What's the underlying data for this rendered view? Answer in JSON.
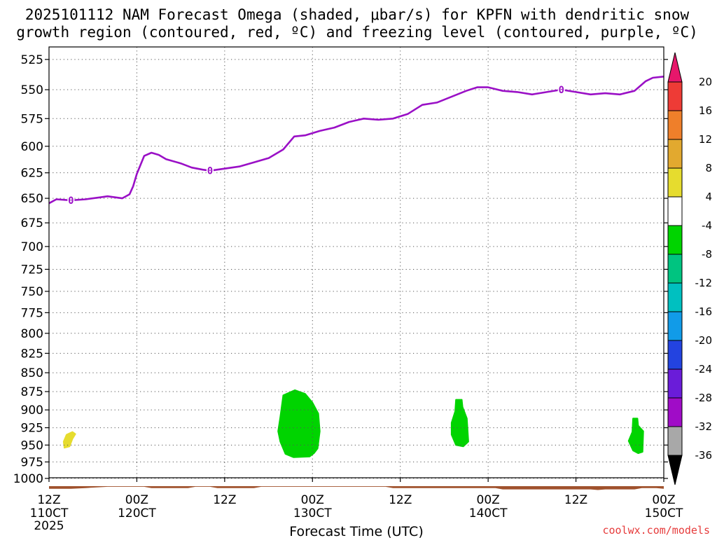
{
  "title_lines": [
    "2025101112 NAM Forecast Omega (shaded, μbar/s) for KPFN with dendritic snow",
    "growth region (contoured, red, ºC) and freezing level (contoured, purple, ºC)"
  ],
  "credit": "coolwx.com/models",
  "colors": {
    "freezing_line": "#9a10c6",
    "ground": "#a0522d",
    "omega_green": "#00d400",
    "omega_yellow": "#e6dc2e",
    "grid": "#555555"
  },
  "chart_data": {
    "type": "area",
    "xlabel": "Forecast Time (UTC)",
    "x_ticks": [
      {
        "hour": 0,
        "label": "12Z",
        "sub": "110CT",
        "sub2": "2025"
      },
      {
        "hour": 12,
        "label": "00Z",
        "sub": "120CT"
      },
      {
        "hour": 24,
        "label": "12Z",
        "sub": ""
      },
      {
        "hour": 36,
        "label": "00Z",
        "sub": "130CT"
      },
      {
        "hour": 48,
        "label": "12Z",
        "sub": ""
      },
      {
        "hour": 60,
        "label": "00Z",
        "sub": "140CT"
      },
      {
        "hour": 72,
        "label": "12Z",
        "sub": ""
      },
      {
        "hour": 84,
        "label": "00Z",
        "sub": "150CT"
      }
    ],
    "x_range_hours": [
      0,
      84
    ],
    "y_ticks": [
      525,
      550,
      575,
      600,
      625,
      650,
      675,
      700,
      725,
      750,
      775,
      800,
      825,
      850,
      875,
      900,
      925,
      950,
      975,
      1000
    ],
    "y_range_mb": [
      515,
      1012
    ],
    "y_scale": "log",
    "grid": true,
    "freezing_level": {
      "label": "0",
      "label_hours": [
        3,
        22,
        70
      ],
      "points": [
        [
          0,
          655
        ],
        [
          1,
          651
        ],
        [
          3,
          652
        ],
        [
          5,
          651
        ],
        [
          7,
          649
        ],
        [
          8,
          648
        ],
        [
          10,
          650
        ],
        [
          11,
          646
        ],
        [
          11.5,
          638
        ],
        [
          12,
          626
        ],
        [
          13,
          609
        ],
        [
          14,
          606
        ],
        [
          15,
          608
        ],
        [
          16,
          612
        ],
        [
          18,
          616
        ],
        [
          19.5,
          620
        ],
        [
          21,
          622
        ],
        [
          22,
          623
        ],
        [
          24,
          621
        ],
        [
          26,
          619
        ],
        [
          28,
          615
        ],
        [
          30,
          611
        ],
        [
          32,
          603
        ],
        [
          33.5,
          591
        ],
        [
          35,
          590
        ],
        [
          37,
          586
        ],
        [
          39,
          583
        ],
        [
          41,
          578
        ],
        [
          43,
          575
        ],
        [
          45,
          576
        ],
        [
          47,
          575
        ],
        [
          49,
          571
        ],
        [
          51,
          563
        ],
        [
          53,
          561
        ],
        [
          55,
          556
        ],
        [
          57,
          551
        ],
        [
          58.5,
          548
        ],
        [
          60,
          548
        ],
        [
          62,
          551
        ],
        [
          64,
          552
        ],
        [
          66,
          554
        ],
        [
          68,
          552
        ],
        [
          70,
          550
        ],
        [
          72,
          552
        ],
        [
          74,
          554
        ],
        [
          76,
          553
        ],
        [
          78,
          554
        ],
        [
          80,
          551
        ],
        [
          81.5,
          543
        ],
        [
          82.5,
          540
        ],
        [
          84,
          539
        ]
      ]
    },
    "ground_surface": {
      "points": [
        [
          0,
          1016
        ],
        [
          3,
          1016
        ],
        [
          5,
          1015
        ],
        [
          8,
          1013
        ],
        [
          13,
          1013
        ],
        [
          14,
          1015
        ],
        [
          19,
          1015
        ],
        [
          20,
          1013
        ],
        [
          22,
          1013
        ],
        [
          23,
          1015
        ],
        [
          28,
          1015
        ],
        [
          29,
          1013
        ],
        [
          46,
          1013
        ],
        [
          47,
          1015
        ],
        [
          61,
          1015
        ],
        [
          62,
          1017
        ],
        [
          74,
          1017
        ],
        [
          75,
          1018
        ],
        [
          76,
          1017
        ],
        [
          80,
          1017
        ],
        [
          81,
          1015
        ],
        [
          83,
          1015
        ],
        [
          84,
          1016
        ]
      ]
    },
    "omega_regions": [
      {
        "value_range": "4 to 8",
        "color": "#e6dc2e",
        "points": [
          [
            2.0,
            945
          ],
          [
            2.4,
            935
          ],
          [
            3.2,
            931
          ],
          [
            3.6,
            934
          ],
          [
            3.2,
            941
          ],
          [
            2.8,
            952
          ],
          [
            2.1,
            954
          ]
        ]
      },
      {
        "value_range": "-8 to -4",
        "color": "#00d400",
        "points": [
          [
            32.0,
            880
          ],
          [
            33.6,
            873
          ],
          [
            35.0,
            878
          ],
          [
            36.0,
            890
          ],
          [
            36.8,
            905
          ],
          [
            37.0,
            930
          ],
          [
            36.7,
            955
          ],
          [
            36.2,
            962
          ],
          [
            35.6,
            967
          ],
          [
            33.4,
            968
          ],
          [
            32.3,
            963
          ],
          [
            31.6,
            945
          ],
          [
            31.3,
            930
          ],
          [
            31.6,
            910
          ]
        ]
      },
      {
        "value_range": "-8 to -4",
        "color": "#00d400",
        "points": [
          [
            55.6,
            886
          ],
          [
            56.4,
            886
          ],
          [
            56.5,
            896
          ],
          [
            57.1,
            912
          ],
          [
            57.3,
            945
          ],
          [
            56.6,
            952
          ],
          [
            55.6,
            950
          ],
          [
            55.0,
            935
          ],
          [
            55.0,
            918
          ],
          [
            55.5,
            902
          ]
        ]
      },
      {
        "value_range": "-8 to -4",
        "color": "#00d400",
        "points": [
          [
            79.8,
            912
          ],
          [
            80.4,
            912
          ],
          [
            80.5,
            922
          ],
          [
            81.2,
            930
          ],
          [
            81.1,
            960
          ],
          [
            80.5,
            962
          ],
          [
            79.8,
            958
          ],
          [
            79.2,
            944
          ],
          [
            79.7,
            931
          ]
        ]
      }
    ],
    "colorbar": {
      "labels": [
        "20",
        "16",
        "12",
        "8",
        "4",
        "-4",
        "-8",
        "-12",
        "-16",
        "-20",
        "-24",
        "-28",
        "-32",
        "-36"
      ],
      "colors": [
        "#e7176b",
        "#ee3b36",
        "#ef7f2a",
        "#e2a92f",
        "#e6dc2e",
        "#ffffff",
        "#00d400",
        "#00c480",
        "#00c0c0",
        "#119be8",
        "#2343e0",
        "#6a1cd9",
        "#a00cc7",
        "#a8a8a8",
        "#000000"
      ]
    }
  }
}
